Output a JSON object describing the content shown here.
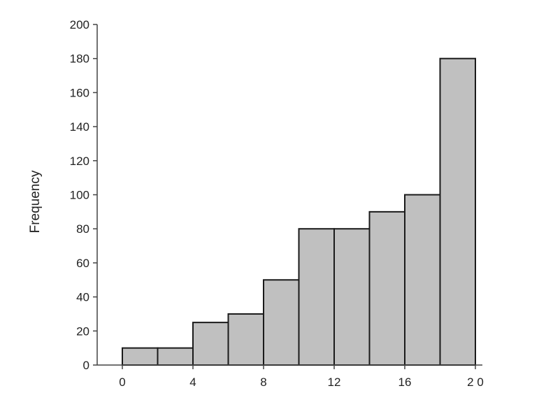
{
  "chart_data": {
    "type": "bar",
    "title": "",
    "xlabel": "",
    "ylabel": "Frequency",
    "ylim": [
      0,
      200
    ],
    "xlim": [
      0,
      20
    ],
    "bin_width": 2,
    "bins": [
      {
        "start": 0,
        "end": 2,
        "value": 10
      },
      {
        "start": 2,
        "end": 4,
        "value": 10
      },
      {
        "start": 4,
        "end": 6,
        "value": 25
      },
      {
        "start": 6,
        "end": 8,
        "value": 30
      },
      {
        "start": 8,
        "end": 10,
        "value": 50
      },
      {
        "start": 10,
        "end": 12,
        "value": 80
      },
      {
        "start": 12,
        "end": 14,
        "value": 80
      },
      {
        "start": 14,
        "end": 16,
        "value": 90
      },
      {
        "start": 16,
        "end": 18,
        "value": 100
      },
      {
        "start": 18,
        "end": 20,
        "value": 180
      }
    ],
    "y_ticks": [
      0,
      20,
      40,
      60,
      80,
      100,
      120,
      140,
      160,
      180,
      200
    ],
    "x_ticks": [
      0,
      4,
      8,
      12,
      16,
      20
    ],
    "y_tick_labels": [
      "0",
      "20",
      "40",
      "60",
      "80",
      "100",
      "120",
      "140",
      "160",
      "180",
      "200"
    ],
    "x_tick_labels": [
      "0",
      "4",
      "8",
      "12",
      "16",
      "2 0"
    ],
    "grid": false,
    "legend": "none",
    "bar_color": "#c0c0c0",
    "edge_color": "#1a1a1a"
  }
}
